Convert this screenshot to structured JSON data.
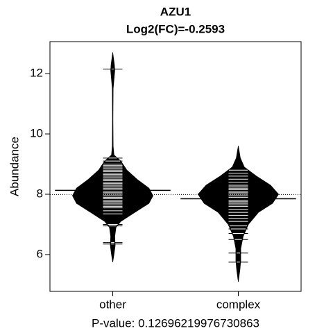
{
  "chart_data": {
    "type": "beanplot",
    "title": "AZU1",
    "subtitle": "Log2(FC)=-0.2593",
    "ylabel": "Abundance",
    "xlabel": "P-value: 0.12696219976730863",
    "categories": [
      "other",
      "complex"
    ],
    "ylim": [
      4.78,
      13.06
    ],
    "yticks": [
      6,
      8,
      10,
      12
    ],
    "overall_mean": 7.99,
    "groups": [
      {
        "mean": 8.13,
        "density": {
          "y": [
            5.75,
            6.0,
            6.3,
            6.6,
            6.9,
            7.1,
            7.4,
            7.7,
            7.95,
            8.2,
            8.5,
            8.8,
            9.1,
            9.3,
            9.6,
            10.5,
            11.5,
            12.1,
            12.3,
            12.7
          ],
          "width": [
            0,
            0.03,
            0.06,
            0.05,
            0.08,
            0.2,
            0.55,
            0.9,
            1.0,
            0.9,
            0.6,
            0.35,
            0.2,
            0.03,
            0.01,
            0.005,
            0.01,
            0.05,
            0.04,
            0
          ]
        },
        "observations": [
          12.15,
          7.0,
          6.95,
          6.4,
          6.35,
          7.35,
          7.45,
          7.55,
          7.6,
          7.65,
          7.7,
          7.75,
          7.8,
          7.85,
          7.9,
          7.95,
          8.0,
          8.05,
          8.1,
          8.15,
          8.2,
          8.25,
          8.3,
          8.35,
          8.4,
          8.45,
          8.5,
          8.55,
          8.6,
          8.65,
          8.7,
          8.75,
          8.8,
          8.85,
          8.9,
          8.95,
          9.0,
          9.1,
          9.2
        ]
      },
      {
        "mean": 7.85,
        "density": {
          "y": [
            5.1,
            5.5,
            5.8,
            6.2,
            6.6,
            7.0,
            7.4,
            7.7,
            8.0,
            8.3,
            8.6,
            8.9,
            9.2,
            9.6
          ],
          "width": [
            0,
            0.04,
            0.06,
            0.06,
            0.12,
            0.25,
            0.5,
            0.85,
            1.0,
            0.8,
            0.45,
            0.15,
            0.05,
            0
          ]
        },
        "observations": [
          5.75,
          6.05,
          6.5,
          6.7,
          6.85,
          6.95,
          7.1,
          7.2,
          7.3,
          7.4,
          7.5,
          7.6,
          7.65,
          7.7,
          7.75,
          7.8,
          7.85,
          7.9,
          7.95,
          8.0,
          8.05,
          8.1,
          8.15,
          8.2,
          8.25,
          8.3,
          8.4,
          8.5,
          8.6,
          8.7,
          8.8
        ]
      }
    ]
  }
}
